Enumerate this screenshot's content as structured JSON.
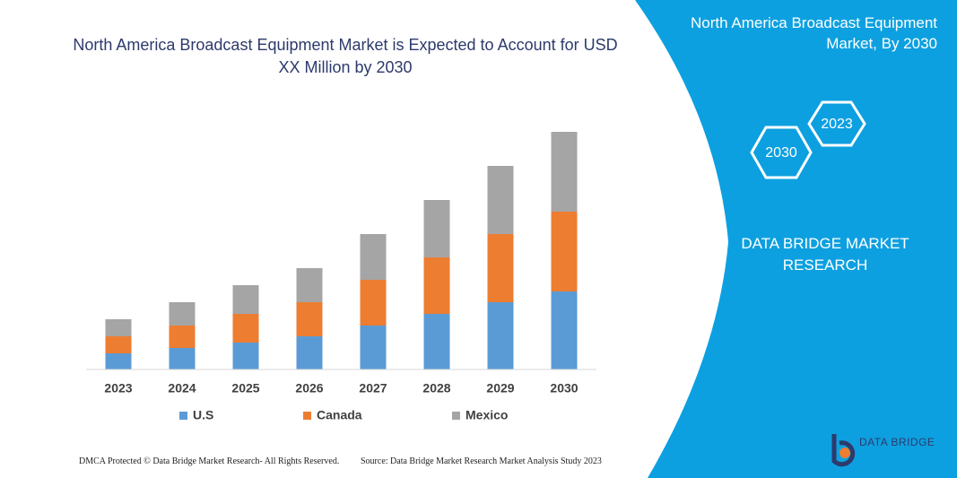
{
  "chart_data": {
    "type": "bar",
    "stacked": true,
    "title": "North America Broadcast Equipment Market is Expected to Account for USD XX Million by 2030",
    "categories": [
      "2023",
      "2024",
      "2025",
      "2026",
      "2027",
      "2028",
      "2029",
      "2030"
    ],
    "series": [
      {
        "name": "U.S",
        "color": "#5b9bd5",
        "values": [
          18,
          24,
          30,
          37,
          49,
          62,
          75,
          87
        ]
      },
      {
        "name": "Canada",
        "color": "#ed7d31",
        "values": [
          19,
          25,
          32,
          38,
          51,
          63,
          76,
          89
        ]
      },
      {
        "name": "Mexico",
        "color": "#a5a5a5",
        "values": [
          19,
          26,
          32,
          38,
          51,
          64,
          76,
          89
        ]
      }
    ]
  },
  "panel": {
    "title": "North America Broadcast Equipment Market, By 2030",
    "hex_left": "2030",
    "hex_right": "2023",
    "brand": "DATA BRIDGE MARKET RESEARCH"
  },
  "footer": {
    "left": "DMCA Protected © Data Bridge Market Research- All Rights Reserved.",
    "right": "Source: Data Bridge Market Research Market Analysis Study 2023"
  },
  "logo": "DATA BRIDGE"
}
